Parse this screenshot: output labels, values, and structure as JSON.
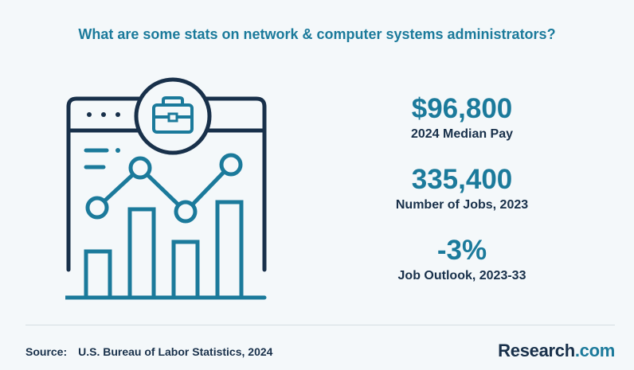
{
  "title": "What are some stats on network & computer systems administrators?",
  "stats": [
    {
      "value": "$96,800",
      "label": "2024 Median Pay"
    },
    {
      "value": "335,400",
      "label": "Number of Jobs, 2023"
    },
    {
      "value": "-3%",
      "label": "Job Outlook, 2023-33"
    }
  ],
  "source": {
    "label": "Source:",
    "text": "U.S. Bureau of Labor Statistics, 2024"
  },
  "brand": {
    "name": "Research",
    "suffix": ".com"
  },
  "illustration": {
    "icon": "analytics-browser-briefcase-icon",
    "colors": {
      "dark": "#18304a",
      "accent": "#1b7a9b"
    }
  }
}
